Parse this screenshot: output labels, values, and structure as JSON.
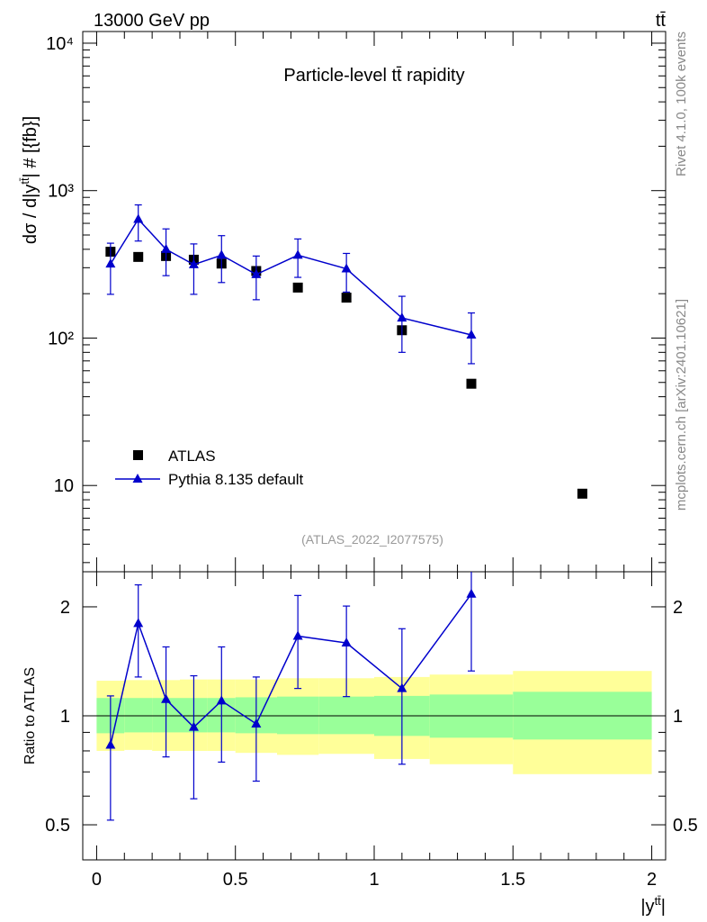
{
  "header": {
    "left_label": "13000 GeV pp",
    "right_label": "tt̄"
  },
  "side_labels": {
    "rivet": "Rivet 4.1.0,  100k events",
    "mcplots": "mcplots.cern.ch [arXiv:2401.10621]"
  },
  "chart_data": [
    {
      "type": "scatter",
      "panel": "main",
      "title": "Particle-level tt̄ rapidity",
      "ylabel": "dσ / d|y^tt̄| # [{fb}]",
      "xlabel": "|y^tt̄|",
      "yscale": "log",
      "ylim": [
        2.6,
        12000
      ],
      "xlim": [
        -0.05,
        2.05
      ],
      "yticks": [
        10,
        100,
        1000,
        10000
      ],
      "ytick_labels": [
        "10",
        "10²",
        "10³",
        "10⁴"
      ],
      "watermark": "(ATLAS_2022_I2077575)",
      "legend_position": "bottom-left",
      "series": [
        {
          "name": "ATLAS",
          "marker": "square",
          "color": "#000000",
          "x": [
            0.05,
            0.15,
            0.25,
            0.35,
            0.45,
            0.575,
            0.725,
            0.9,
            1.1,
            1.35,
            1.75
          ],
          "values": [
            385,
            355,
            360,
            340,
            320,
            285,
            220,
            188,
            113,
            49,
            8.8
          ]
        },
        {
          "name": "Pythia 8.135 default",
          "marker": "triangle",
          "color": "#0000cc",
          "x": [
            0.05,
            0.15,
            0.25,
            0.35,
            0.45,
            0.575,
            0.725,
            0.9,
            1.1,
            1.35
          ],
          "values": [
            318,
            640,
            400,
            315,
            365,
            270,
            365,
            295,
            137,
            105
          ],
          "err_low": [
            198,
            455,
            265,
            198,
            238,
            182,
            258,
            205,
            80,
            67
          ],
          "err_high": [
            440,
            800,
            550,
            435,
            495,
            360,
            470,
            375,
            192,
            148
          ]
        }
      ]
    },
    {
      "type": "scatter",
      "panel": "ratio",
      "ylabel": "Ratio to ATLAS",
      "xlabel": "|y^tt̄|",
      "yscale": "log",
      "ylim": [
        0.4,
        2.5
      ],
      "xlim": [
        -0.05,
        2.05
      ],
      "yticks": [
        0.5,
        1,
        2
      ],
      "ytick_labels": [
        "0.5",
        "1",
        "2"
      ],
      "xticks": [
        0,
        0.5,
        1,
        1.5,
        2
      ],
      "xtick_labels": [
        "0",
        "0.5",
        "1",
        "1.5",
        "2"
      ],
      "bands": {
        "bin_edges": [
          0,
          0.1,
          0.2,
          0.3,
          0.4,
          0.5,
          0.65,
          0.8,
          1.0,
          1.2,
          1.5,
          2.0
        ],
        "inner_low": [
          0.895,
          0.9,
          0.9,
          0.9,
          0.9,
          0.895,
          0.89,
          0.89,
          0.88,
          0.87,
          0.86
        ],
        "inner_high": [
          1.12,
          1.12,
          1.12,
          1.12,
          1.12,
          1.125,
          1.13,
          1.13,
          1.135,
          1.145,
          1.165
        ],
        "outer_low": [
          0.8,
          0.805,
          0.8,
          0.8,
          0.8,
          0.79,
          0.78,
          0.785,
          0.76,
          0.735,
          0.69
        ],
        "outer_high": [
          1.25,
          1.255,
          1.255,
          1.26,
          1.26,
          1.26,
          1.27,
          1.27,
          1.28,
          1.3,
          1.33
        ],
        "inner_color": "#99ff99",
        "outer_color": "#ffff99"
      },
      "series": [
        {
          "name": "Pythia 8.135 default / ATLAS",
          "marker": "triangle",
          "color": "#0000cc",
          "x": [
            0.05,
            0.15,
            0.25,
            0.35,
            0.45,
            0.575,
            0.725,
            0.9,
            1.1,
            1.35
          ],
          "values": [
            0.83,
            1.8,
            1.11,
            0.93,
            1.1,
            0.95,
            1.66,
            1.59,
            1.19,
            2.17
          ],
          "err_low": [
            0.515,
            1.28,
            0.77,
            0.59,
            0.745,
            0.66,
            1.19,
            1.13,
            0.735,
            1.33
          ],
          "err_high": [
            1.135,
            2.3,
            1.55,
            1.29,
            1.55,
            1.28,
            2.15,
            2.01,
            1.74,
            2.5
          ]
        }
      ]
    }
  ]
}
